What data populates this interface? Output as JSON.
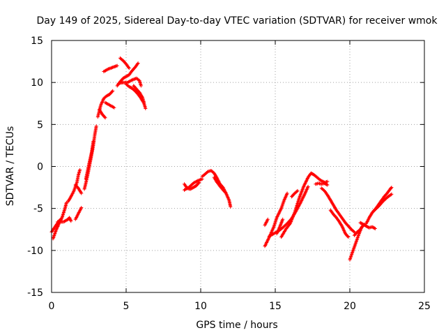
{
  "chart_data": {
    "type": "scatter",
    "title": "Day 149 of 2025, Sidereal Day-to-day VTEC variation (SDTVAR) for receiver wmok",
    "xlabel": "GPS time / hours",
    "ylabel": "SDTVAR / TECUs",
    "xlim": [
      0,
      25
    ],
    "ylim": [
      -15,
      15
    ],
    "xticks": [
      0,
      5,
      10,
      15,
      20,
      25
    ],
    "yticks": [
      -15,
      -10,
      -5,
      0,
      5,
      10,
      15
    ],
    "grid": true,
    "legend": "none",
    "marker": "plus",
    "color": "#ff0000",
    "series": [
      {
        "name": "tracks",
        "tracks": [
          [
            [
              0.1,
              -8.6
            ],
            [
              0.3,
              -7.6
            ],
            [
              0.5,
              -6.8
            ],
            [
              0.7,
              -6.1
            ],
            [
              0.9,
              -5.0
            ],
            [
              1.0,
              -4.3
            ]
          ],
          [
            [
              0.0,
              -7.8
            ],
            [
              0.3,
              -7.0
            ],
            [
              0.5,
              -6.5
            ],
            [
              0.6,
              -6.3
            ]
          ],
          [
            [
              0.4,
              -6.6
            ],
            [
              0.8,
              -6.6
            ],
            [
              1.1,
              -6.3
            ],
            [
              1.2,
              -6.1
            ],
            [
              1.3,
              -6.5
            ]
          ],
          [
            [
              1.1,
              -4.2
            ],
            [
              1.3,
              -3.6
            ],
            [
              1.5,
              -2.9
            ],
            [
              1.7,
              -1.9
            ],
            [
              1.8,
              -1.0
            ],
            [
              1.9,
              -0.4
            ]
          ],
          [
            [
              1.6,
              -6.3
            ],
            [
              1.8,
              -5.6
            ],
            [
              2.0,
              -4.9
            ]
          ],
          [
            [
              1.6,
              -2.2
            ],
            [
              1.8,
              -2.6
            ],
            [
              2.0,
              -3.2
            ]
          ],
          [
            [
              2.2,
              -2.7
            ],
            [
              2.4,
              -1.2
            ],
            [
              2.6,
              0.6
            ],
            [
              2.8,
              2.5
            ],
            [
              2.9,
              3.8
            ],
            [
              3.0,
              4.8
            ]
          ],
          [
            [
              2.3,
              -1.5
            ],
            [
              2.5,
              0.2
            ],
            [
              2.7,
              1.8
            ],
            [
              2.8,
              3.0
            ]
          ],
          [
            [
              3.1,
              5.9
            ],
            [
              3.3,
              7.3
            ],
            [
              3.5,
              8.1
            ],
            [
              3.7,
              8.4
            ],
            [
              3.9,
              8.6
            ],
            [
              4.1,
              9.0
            ]
          ],
          [
            [
              3.2,
              6.8
            ],
            [
              3.4,
              6.2
            ],
            [
              3.6,
              5.8
            ]
          ],
          [
            [
              3.6,
              7.6
            ],
            [
              3.9,
              7.3
            ],
            [
              4.2,
              7.0
            ]
          ],
          [
            [
              3.5,
              11.3
            ],
            [
              3.8,
              11.6
            ],
            [
              4.1,
              11.8
            ],
            [
              4.4,
              12.0
            ]
          ],
          [
            [
              4.4,
              9.6
            ],
            [
              4.6,
              10.1
            ],
            [
              4.8,
              10.5
            ],
            [
              5.0,
              10.7
            ],
            [
              5.2,
              10.9
            ],
            [
              5.4,
              11.4
            ],
            [
              5.6,
              11.8
            ],
            [
              5.8,
              12.3
            ]
          ],
          [
            [
              4.6,
              12.9
            ],
            [
              4.8,
              12.6
            ],
            [
              5.0,
              12.2
            ],
            [
              5.2,
              11.7
            ]
          ],
          [
            [
              4.5,
              9.9
            ],
            [
              4.8,
              10.0
            ],
            [
              5.1,
              10.0
            ],
            [
              5.4,
              10.3
            ],
            [
              5.7,
              10.5
            ],
            [
              5.9,
              10.2
            ],
            [
              6.0,
              9.6
            ]
          ],
          [
            [
              5.0,
              9.8
            ],
            [
              5.2,
              9.5
            ],
            [
              5.4,
              9.3
            ],
            [
              5.6,
              9.0
            ],
            [
              5.8,
              8.6
            ],
            [
              6.0,
              8.1
            ],
            [
              6.2,
              7.5
            ],
            [
              6.3,
              6.9
            ]
          ],
          [
            [
              5.5,
              9.6
            ],
            [
              5.7,
              9.2
            ],
            [
              5.9,
              8.8
            ],
            [
              6.1,
              8.2
            ],
            [
              6.2,
              7.6
            ]
          ],
          [
            [
              8.9,
              -2.1
            ],
            [
              9.1,
              -2.6
            ],
            [
              9.3,
              -2.7
            ],
            [
              9.5,
              -2.5
            ],
            [
              9.7,
              -2.3
            ],
            [
              9.9,
              -1.9
            ]
          ],
          [
            [
              8.9,
              -2.8
            ],
            [
              9.2,
              -2.5
            ],
            [
              9.5,
              -2.0
            ],
            [
              9.8,
              -1.7
            ],
            [
              10.1,
              -1.5
            ]
          ],
          [
            [
              10.1,
              -1.2
            ],
            [
              10.3,
              -0.9
            ],
            [
              10.5,
              -0.6
            ],
            [
              10.7,
              -0.5
            ],
            [
              10.9,
              -0.8
            ],
            [
              11.1,
              -1.4
            ],
            [
              11.3,
              -2.1
            ],
            [
              11.5,
              -2.5
            ],
            [
              11.7,
              -3.2
            ],
            [
              11.9,
              -4.0
            ],
            [
              12.0,
              -4.8
            ]
          ],
          [
            [
              10.9,
              -1.3
            ],
            [
              11.1,
              -1.9
            ],
            [
              11.4,
              -2.6
            ],
            [
              11.7,
              -3.2
            ]
          ],
          [
            [
              14.3,
              -7.0
            ],
            [
              14.5,
              -6.3
            ]
          ],
          [
            [
              14.3,
              -9.5
            ],
            [
              14.6,
              -8.4
            ],
            [
              14.9,
              -7.2
            ],
            [
              15.1,
              -6.1
            ],
            [
              15.4,
              -5.0
            ],
            [
              15.6,
              -4.0
            ],
            [
              15.8,
              -3.2
            ]
          ],
          [
            [
              14.6,
              -8.3
            ],
            [
              14.9,
              -8.0
            ],
            [
              15.2,
              -7.7
            ],
            [
              15.5,
              -7.3
            ],
            [
              15.8,
              -6.8
            ],
            [
              16.1,
              -6.2
            ],
            [
              16.4,
              -5.3
            ],
            [
              16.7,
              -4.3
            ],
            [
              17.0,
              -3.2
            ],
            [
              17.2,
              -2.4
            ]
          ],
          [
            [
              15.1,
              -8.0
            ],
            [
              15.3,
              -7.2
            ],
            [
              15.5,
              -6.3
            ]
          ],
          [
            [
              15.4,
              -8.4
            ],
            [
              15.7,
              -7.5
            ],
            [
              16.0,
              -6.8
            ],
            [
              16.3,
              -5.5
            ],
            [
              16.6,
              -3.8
            ],
            [
              16.9,
              -2.4
            ],
            [
              17.2,
              -1.3
            ],
            [
              17.4,
              -0.8
            ],
            [
              17.6,
              -1.0
            ],
            [
              17.8,
              -1.3
            ],
            [
              18.0,
              -1.6
            ],
            [
              18.3,
              -1.9
            ],
            [
              18.5,
              -1.8
            ]
          ],
          [
            [
              16.1,
              -3.6
            ],
            [
              16.3,
              -3.2
            ],
            [
              16.5,
              -2.9
            ]
          ],
          [
            [
              17.7,
              -2.1
            ],
            [
              17.9,
              -2.0
            ],
            [
              18.1,
              -2.1
            ],
            [
              18.3,
              -2.0
            ],
            [
              18.5,
              -2.2
            ]
          ],
          [
            [
              18.1,
              -2.6
            ],
            [
              18.3,
              -2.9
            ],
            [
              18.5,
              -3.4
            ],
            [
              18.7,
              -4.0
            ],
            [
              18.9,
              -4.6
            ],
            [
              19.1,
              -5.2
            ],
            [
              19.3,
              -5.7
            ],
            [
              19.5,
              -6.2
            ],
            [
              19.7,
              -6.7
            ],
            [
              19.9,
              -7.1
            ],
            [
              20.1,
              -7.5
            ],
            [
              20.3,
              -7.8
            ]
          ],
          [
            [
              18.7,
              -5.2
            ],
            [
              18.9,
              -5.7
            ],
            [
              19.1,
              -6.1
            ],
            [
              19.3,
              -6.6
            ],
            [
              19.5,
              -7.2
            ],
            [
              19.7,
              -8.0
            ],
            [
              19.9,
              -8.4
            ]
          ],
          [
            [
              20.0,
              -11.1
            ],
            [
              20.2,
              -10.1
            ],
            [
              20.4,
              -9.1
            ],
            [
              20.6,
              -8.1
            ],
            [
              20.8,
              -7.2
            ],
            [
              21.0,
              -6.9
            ]
          ],
          [
            [
              20.3,
              -8.2
            ],
            [
              20.5,
              -7.8
            ],
            [
              20.7,
              -7.5
            ],
            [
              20.9,
              -7.0
            ]
          ],
          [
            [
              20.7,
              -6.7
            ],
            [
              20.9,
              -6.9
            ],
            [
              21.1,
              -7.1
            ],
            [
              21.3,
              -7.3
            ],
            [
              21.5,
              -7.2
            ],
            [
              21.7,
              -7.4
            ]
          ],
          [
            [
              21.1,
              -6.8
            ],
            [
              21.3,
              -6.1
            ],
            [
              21.5,
              -5.5
            ],
            [
              21.7,
              -5.1
            ],
            [
              21.9,
              -4.6
            ],
            [
              22.1,
              -4.1
            ],
            [
              22.3,
              -3.6
            ],
            [
              22.5,
              -3.2
            ],
            [
              22.7,
              -2.7
            ],
            [
              22.8,
              -2.5
            ]
          ],
          [
            [
              21.6,
              -5.3
            ],
            [
              21.9,
              -4.8
            ],
            [
              22.2,
              -4.2
            ],
            [
              22.5,
              -3.7
            ],
            [
              22.8,
              -3.3
            ]
          ]
        ]
      }
    ]
  }
}
